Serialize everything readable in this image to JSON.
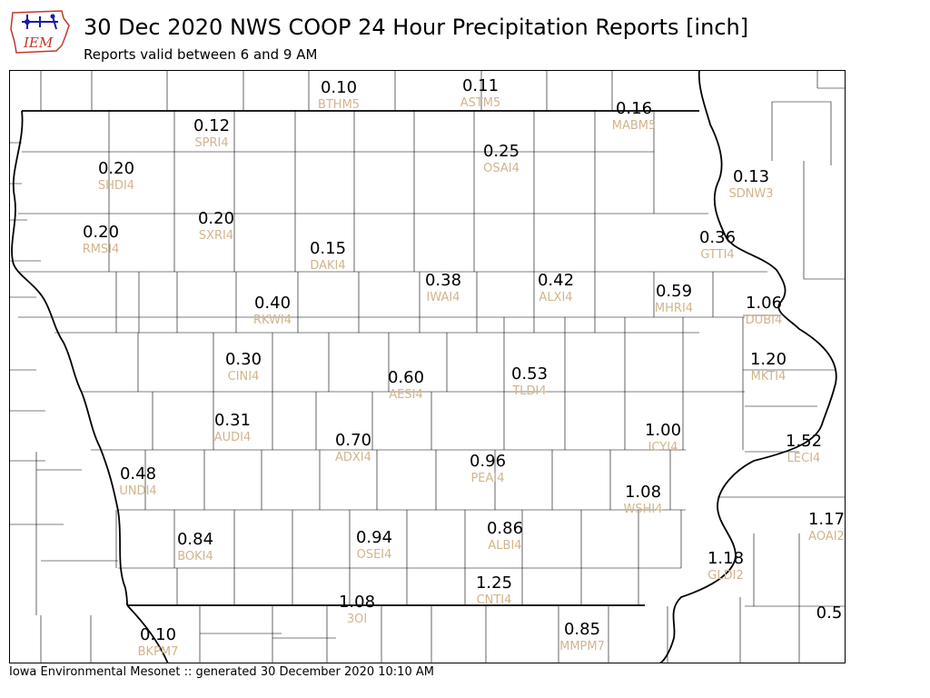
{
  "header": {
    "title": "30 Dec 2020 NWS COOP 24 Hour Precipitation Reports [inch]",
    "subtitle": "Reports valid between 6 and 9 AM",
    "logo_text": "IEM"
  },
  "footer": {
    "text": "Iowa Environmental Mesonet :: generated 30 December 2020 10:10 AM"
  },
  "colors": {
    "value": "#000000",
    "station_id": "#d2b48c",
    "state_border": "#000000",
    "county_border": "#000000",
    "logo": "#1a1aa8",
    "logo_text": "#c0392b"
  },
  "stations": [
    {
      "id": "BTHM5",
      "value": "0.10"
    },
    {
      "id": "ASTM5",
      "value": "0.11"
    },
    {
      "id": "MABM5",
      "value": "0.16"
    },
    {
      "id": "SPRI4",
      "value": "0.12"
    },
    {
      "id": "OSAI4",
      "value": "0.25"
    },
    {
      "id": "SHDI4",
      "value": "0.20"
    },
    {
      "id": "SDNW3",
      "value": "0.13"
    },
    {
      "id": "RMSI4",
      "value": "0.20"
    },
    {
      "id": "SXRI4",
      "value": "0.20"
    },
    {
      "id": "GTTI4",
      "value": "0.36"
    },
    {
      "id": "DAKI4",
      "value": "0.15"
    },
    {
      "id": "IWAI4",
      "value": "0.38"
    },
    {
      "id": "ALXI4",
      "value": "0.42"
    },
    {
      "id": "RKWI4",
      "value": "0.40"
    },
    {
      "id": "MHRI4",
      "value": "0.59"
    },
    {
      "id": "DUBI4",
      "value": "1.06"
    },
    {
      "id": "CINI4",
      "value": "0.30"
    },
    {
      "id": "AESI4",
      "value": "0.60"
    },
    {
      "id": "TLDI4",
      "value": "0.53"
    },
    {
      "id": "MKTI4",
      "value": "1.20"
    },
    {
      "id": "AUDI4",
      "value": "0.31"
    },
    {
      "id": "ICYI4",
      "value": "1.00"
    },
    {
      "id": "ADXI4",
      "value": "0.70"
    },
    {
      "id": "LECI4",
      "value": "1.52"
    },
    {
      "id": "UNDI4",
      "value": "0.48"
    },
    {
      "id": "PEAI4",
      "value": "0.96"
    },
    {
      "id": "WSHI4",
      "value": "1.08"
    },
    {
      "id": "AOAI2",
      "value": "1.17"
    },
    {
      "id": "BOKI4",
      "value": "0.84"
    },
    {
      "id": "OSEI4",
      "value": "0.94"
    },
    {
      "id": "ALBI4",
      "value": "0.86"
    },
    {
      "id": "GLDI2",
      "value": "1.18"
    },
    {
      "id": "CNTI4",
      "value": "1.25"
    },
    {
      "id": "3OI",
      "value": "1.08"
    },
    {
      "id": "BKPM7",
      "value": "0.10"
    },
    {
      "id": "MMPM7",
      "value": "0.85"
    },
    {
      "id": "",
      "value": "0.5"
    }
  ]
}
